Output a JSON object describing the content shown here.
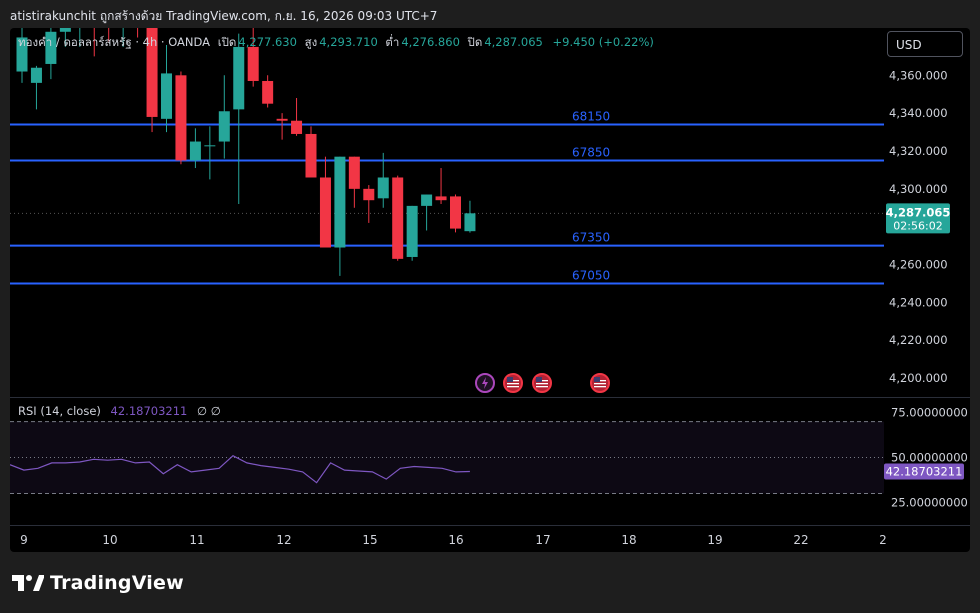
{
  "attribution": "atistirakunchit ถูกสร้างด้วย TradingView.com, ก.ย. 16, 2026 09:03 UTC+7",
  "legend": {
    "symbol": "ทองคำ / ดอลลาร์สหรัฐ · 4h · OANDA",
    "open_label": "เปิด",
    "open": "4,277.630",
    "high_label": "สูง",
    "high": "4,293.710",
    "low_label": "ต่ำ",
    "low": "4,276.860",
    "close_label": "ปิด",
    "close": "4,287.065",
    "change": "+9.450 (+0.22%)"
  },
  "currency": "USD",
  "price_badge": {
    "price": "4,287.065",
    "countdown": "02:56:02"
  },
  "rsi": {
    "label": "RSI (14, close)",
    "value": "42.18703211",
    "extra": "∅ ∅",
    "badge": "42.18703211"
  },
  "brand": "TradingView",
  "colors": {
    "up": "#26a69a",
    "down": "#f23645",
    "level": "#2962ff",
    "rsi": "#7e57c2"
  },
  "chart_data": [
    {
      "type": "candlestick",
      "title": "ทองคำ / ดอลลาร์สหรัฐ · 4h · OANDA",
      "x_tick_labels": [
        "9",
        "10",
        "11",
        "12",
        "15",
        "16",
        "17",
        "18",
        "19",
        "22",
        "2"
      ],
      "y_tick_labels": [
        "4,360.000",
        "4,340.000",
        "4,320.000",
        "4,300.000",
        "4,280.000",
        "4,260.000",
        "4,240.000",
        "4,220.000",
        "4,200.000"
      ],
      "ylim": [
        4190,
        4385
      ],
      "last_price": 4287.065,
      "candles": [
        {
          "o": 4362,
          "h": 4395,
          "l": 4356,
          "c": 4380
        },
        {
          "o": 4356,
          "h": 4365,
          "l": 4342,
          "c": 4364
        },
        {
          "o": 4366,
          "h": 4390,
          "l": 4358,
          "c": 4383
        },
        {
          "o": 4383,
          "h": 4393,
          "l": 4375,
          "c": 4390
        },
        {
          "o": 4390,
          "h": 4398,
          "l": 4375,
          "c": 4393
        },
        {
          "o": 4395,
          "h": 4399,
          "l": 4370,
          "c": 4392
        },
        {
          "o": 4391,
          "h": 4396,
          "l": 4378,
          "c": 4388
        },
        {
          "o": 4387,
          "h": 4394,
          "l": 4375,
          "c": 4394
        },
        {
          "o": 4393,
          "h": 4397,
          "l": 4380,
          "c": 4389
        },
        {
          "o": 4389,
          "h": 4393,
          "l": 4330,
          "c": 4338
        },
        {
          "o": 4337,
          "h": 4376,
          "l": 4330,
          "c": 4361
        },
        {
          "o": 4360,
          "h": 4362,
          "l": 4313,
          "c": 4315
        },
        {
          "o": 4315,
          "h": 4332,
          "l": 4311,
          "c": 4325
        },
        {
          "o": 4323,
          "h": 4333,
          "l": 4305,
          "c": 4323
        },
        {
          "o": 4325,
          "h": 4360,
          "l": 4316,
          "c": 4341
        },
        {
          "o": 4342,
          "h": 4382,
          "l": 4292,
          "c": 4375
        },
        {
          "o": 4375,
          "h": 4392,
          "l": 4354,
          "c": 4357
        },
        {
          "o": 4357,
          "h": 4360,
          "l": 4343,
          "c": 4345
        },
        {
          "o": 4337,
          "h": 4340,
          "l": 4326,
          "c": 4336
        },
        {
          "o": 4336,
          "h": 4348,
          "l": 4328,
          "c": 4329
        },
        {
          "o": 4329,
          "h": 4333,
          "l": 4306,
          "c": 4306
        },
        {
          "o": 4306,
          "h": 4317,
          "l": 4270,
          "c": 4269
        },
        {
          "o": 4269,
          "h": 4317,
          "l": 4254,
          "c": 4317
        },
        {
          "o": 4317,
          "h": 4317,
          "l": 4290,
          "c": 4300
        },
        {
          "o": 4300,
          "h": 4302,
          "l": 4282,
          "c": 4294
        },
        {
          "o": 4295,
          "h": 4319,
          "l": 4290,
          "c": 4306
        },
        {
          "o": 4306,
          "h": 4307,
          "l": 4262,
          "c": 4263
        },
        {
          "o": 4264,
          "h": 4291,
          "l": 4262,
          "c": 4291
        },
        {
          "o": 4291,
          "h": 4297,
          "l": 4278,
          "c": 4297
        },
        {
          "o": 4296,
          "h": 4311,
          "l": 4292,
          "c": 4294
        },
        {
          "o": 4296,
          "h": 4297,
          "l": 4277,
          "c": 4279
        },
        {
          "o": 4277.63,
          "h": 4293.71,
          "l": 4276.86,
          "c": 4287.065
        }
      ],
      "horizontal_levels": [
        {
          "label": "68150",
          "price": 4334
        },
        {
          "label": "67850",
          "price": 4315
        },
        {
          "label": "67350",
          "price": 4270
        },
        {
          "label": "67050",
          "price": 4250
        }
      ],
      "event_markers": [
        "lightning-icon",
        "us-flag-icon",
        "us-flag-icon",
        "us-flag-icon"
      ]
    },
    {
      "type": "line",
      "title": "RSI (14, close)",
      "y_tick_labels": [
        "75.00000000",
        "50.00000000",
        "25.00000000"
      ],
      "ylim": [
        13,
        82
      ],
      "band": [
        30,
        70
      ],
      "midline": 50,
      "values": [
        46,
        43,
        44,
        47,
        47,
        47.5,
        49,
        48.5,
        49,
        47,
        47.5,
        41,
        46,
        42,
        43,
        44,
        51,
        47,
        45.5,
        44.5,
        43.5,
        42,
        36,
        47,
        43,
        42.5,
        42,
        38,
        44,
        45,
        44.5,
        44,
        42,
        42.19
      ]
    }
  ]
}
